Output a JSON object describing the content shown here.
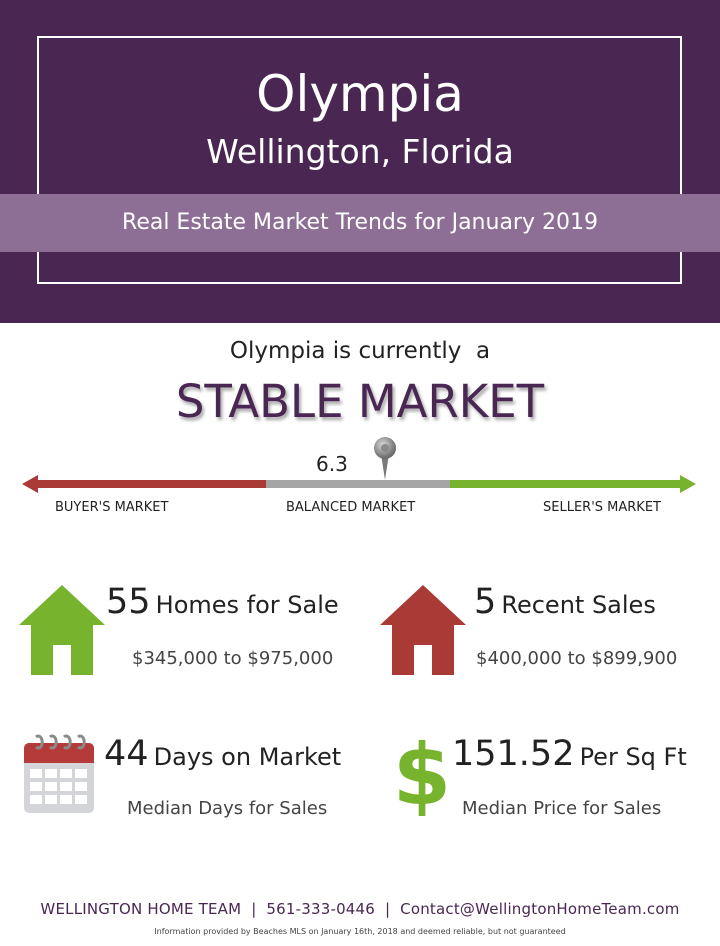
{
  "header": {
    "title": "Olympia",
    "subtitle": "Wellington, Florida",
    "band_text": "Real Estate Market Trends for January 2019"
  },
  "market": {
    "intro": "Olympia is currently  a",
    "status": "STABLE MARKET",
    "score": "6.3",
    "labels": {
      "buyer": "BUYER'S MARKET",
      "balanced": "BALANCED MARKET",
      "seller": "SELLER'S MARKET"
    }
  },
  "stats": {
    "homes_for_sale": {
      "number": "55",
      "label": "Homes for Sale",
      "range": "$345,000 to $975,000"
    },
    "recent_sales": {
      "number": "5",
      "label": "Recent Sales",
      "range": "$400,000 to $899,900"
    },
    "days_on_market": {
      "number": "44",
      "label": "Days on Market",
      "sub": "Median Days for Sales"
    },
    "price_per_sqft": {
      "number": "151.52",
      "label": "Per Sq Ft",
      "sub": "Median Price for Sales"
    }
  },
  "footer": {
    "contact": "WELLINGTON HOME TEAM  |  561-333-0446  |  Contact@WellingtonHomeTeam.com",
    "disclaimer": "Information provided by Beaches MLS on January 16th, 2018 and deemed reliable, but not guaranteed"
  },
  "icons": {
    "homes_for_sale": "house-icon",
    "recent_sales": "house-icon",
    "days_on_market": "calendar-icon",
    "price_per_sqft": "dollar-icon",
    "marker": "map-pin-icon"
  },
  "colors": {
    "header_bg": "#4a2753",
    "band_bg": "#8d6f96",
    "buyer": "#a93a35",
    "balanced": "#a5a5a5",
    "seller": "#77b32d"
  }
}
